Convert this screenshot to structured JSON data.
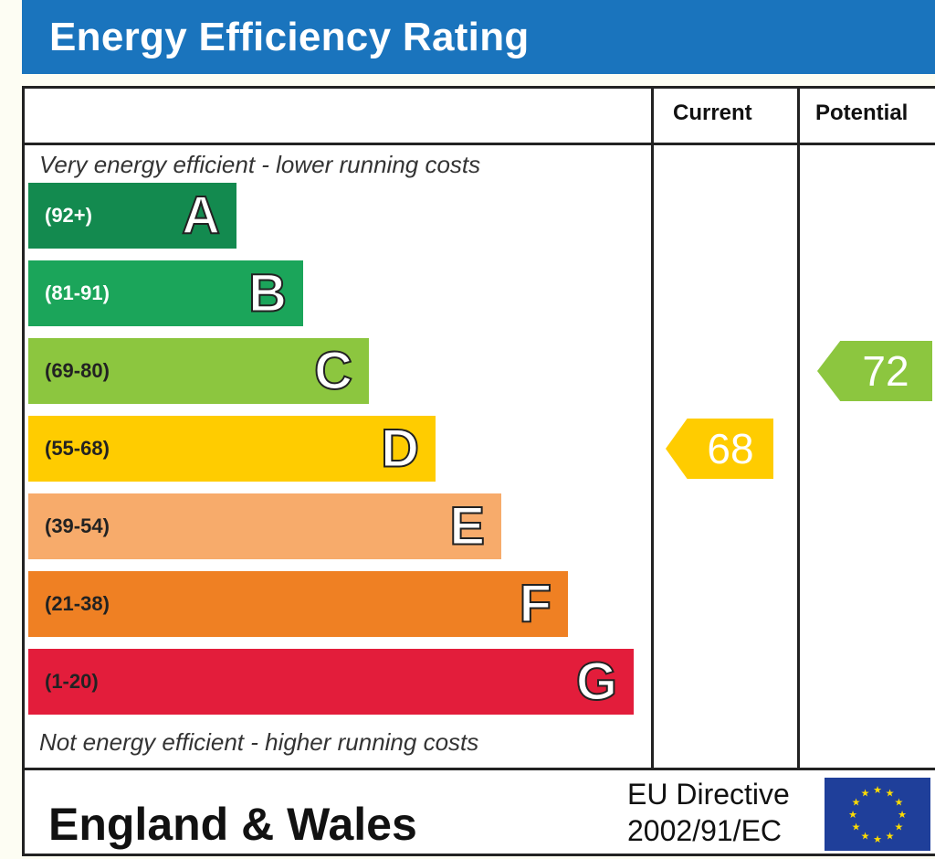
{
  "header": {
    "title": "Energy Efficiency Rating"
  },
  "columns": {
    "current": "Current",
    "potential": "Potential"
  },
  "notes": {
    "top": "Very energy efficient - lower running costs",
    "bottom": "Not energy efficient - higher running costs"
  },
  "chart_data": {
    "type": "bar",
    "title": "Energy Efficiency Rating",
    "categories": [
      "A",
      "B",
      "C",
      "D",
      "E",
      "F",
      "G"
    ],
    "ranges": [
      "(92+)",
      "(81-91)",
      "(69-80)",
      "(55-68)",
      "(39-54)",
      "(21-38)",
      "(1-20)"
    ],
    "colors": [
      "#138a4f",
      "#1ba55a",
      "#8cc63f",
      "#ffcc00",
      "#f7ab6b",
      "#ef8023",
      "#e31d3b"
    ],
    "range_text_colors": [
      "#ffffff",
      "#ffffff",
      "#222222",
      "#222222",
      "#222222",
      "#222222",
      "#222222"
    ],
    "band_ranks": [
      1,
      2,
      3,
      4,
      5,
      6,
      7
    ],
    "current": {
      "value": 68,
      "band": "D",
      "color": "#ffcc00"
    },
    "potential": {
      "value": 72,
      "band": "C",
      "color": "#8cc63f"
    }
  },
  "footer": {
    "region": "England & Wales",
    "directive_line1": "EU Directive",
    "directive_line2": "2002/91/EC"
  }
}
